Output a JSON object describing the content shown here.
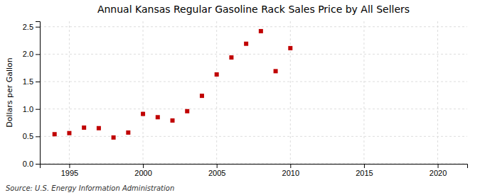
{
  "chart_data": {
    "type": "scatter",
    "title": "Annual Kansas Regular Gasoline Rack Sales Price by All Sellers",
    "y_label": "Dollars per Gallon",
    "annotations": [
      "Source: U.S. Energy Information Administration"
    ],
    "x": [
      1994,
      1995,
      1996,
      1997,
      1998,
      1999,
      2000,
      2001,
      2002,
      2003,
      2004,
      2005,
      2006,
      2007,
      2008,
      2009,
      2010
    ],
    "values": [
      0.54,
      0.56,
      0.66,
      0.65,
      0.48,
      0.57,
      0.91,
      0.85,
      0.79,
      0.96,
      1.24,
      1.63,
      1.94,
      2.19,
      2.42,
      1.69,
      2.11
    ],
    "color": "#c00000",
    "marker": "square",
    "xlim": [
      1993,
      2022
    ],
    "ylim": [
      0.0,
      2.6
    ],
    "xticks": [
      1995,
      2000,
      2005,
      2010,
      2015,
      2020
    ],
    "yticks": [
      {
        "value": 0.0,
        "label": "0.0"
      },
      0.5,
      {
        "value": 1.0,
        "label": "1.0"
      },
      1.5,
      {
        "value": 2.0,
        "label": "2.0"
      },
      2.5
    ],
    "grid": true
  }
}
